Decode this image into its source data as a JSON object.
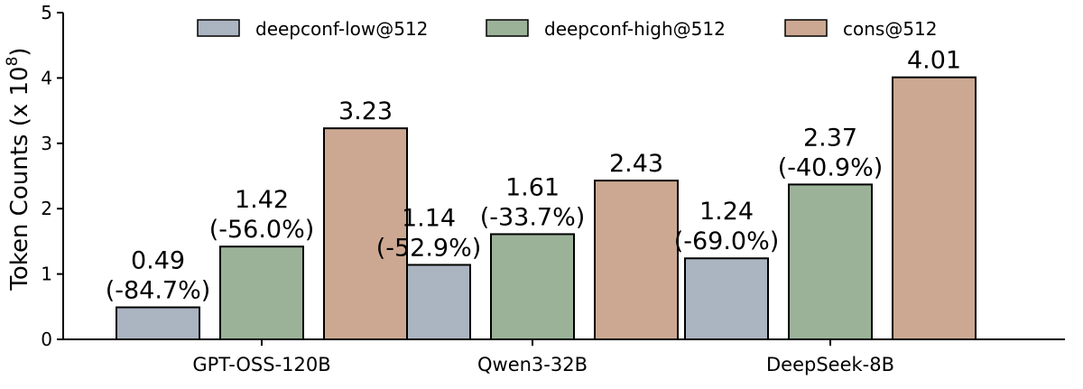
{
  "chart_data": {
    "type": "bar",
    "title": "",
    "ylabel_text": "Token Counts (x 10",
    "ylabel_exp": "8",
    "ylabel_close": ")",
    "xlabel": "",
    "ylim": [
      0,
      5
    ],
    "yticks": [
      "0",
      "1",
      "2",
      "3",
      "4",
      "5"
    ],
    "categories": [
      "GPT-OSS-120B",
      "Qwen3-32B",
      "DeepSeek-8B"
    ],
    "legend_position": "top",
    "series": [
      {
        "name": "deepconf-low@512",
        "color": "#abb4c1",
        "values": [
          0.49,
          1.14,
          1.24
        ],
        "value_labels": [
          "0.49",
          "1.14",
          "1.24"
        ],
        "sub_labels": [
          "(-84.7%)",
          "(-52.9%)",
          "(-69.0%)"
        ]
      },
      {
        "name": "deepconf-high@512",
        "color": "#9bb298",
        "values": [
          1.42,
          1.61,
          2.37
        ],
        "value_labels": [
          "1.42",
          "1.61",
          "2.37"
        ],
        "sub_labels": [
          "(-56.0%)",
          "(-33.7%)",
          "(-40.9%)"
        ]
      },
      {
        "name": "cons@512",
        "color": "#cca892",
        "values": [
          3.23,
          2.43,
          4.01
        ],
        "value_labels": [
          "3.23",
          "2.43",
          "4.01"
        ],
        "sub_labels": [
          "",
          "",
          ""
        ]
      }
    ]
  }
}
